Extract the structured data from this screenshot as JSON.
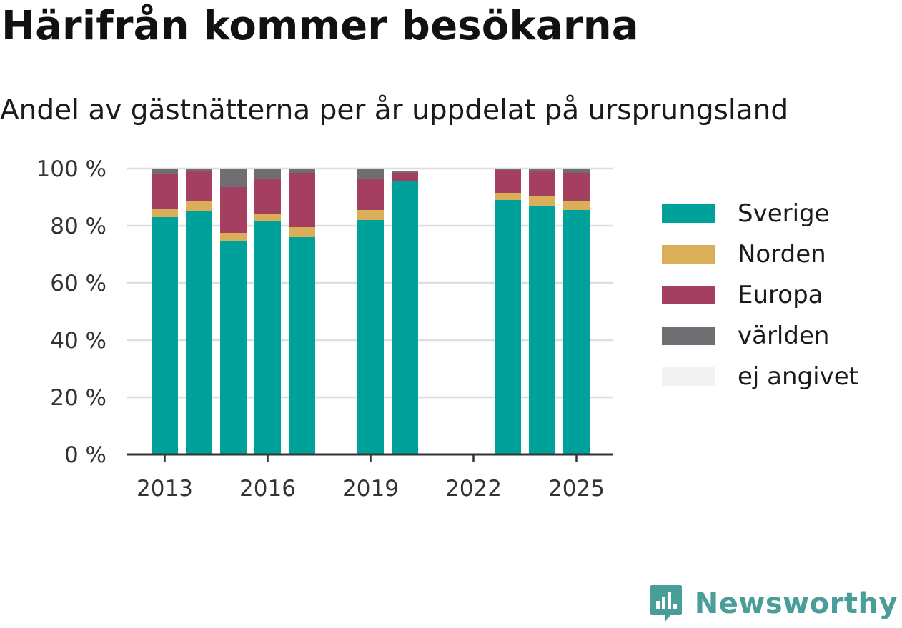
{
  "title": "Härifrån kommer besökarna",
  "subtitle": "Andel av gästnätterna per år uppdelat på ursprungsland",
  "brand": {
    "name": "Newsworthy",
    "color": "#4a9e99"
  },
  "chart_data": {
    "type": "bar",
    "stacked": true,
    "years": [
      2013,
      2014,
      2015,
      2016,
      2017,
      2018,
      2019,
      2020,
      2021,
      2022,
      2023,
      2024,
      2025
    ],
    "x_tick_labels": [
      "2013",
      "2016",
      "2019",
      "2022",
      "2025"
    ],
    "y_tick_labels": [
      "0 %",
      "20 %",
      "40 %",
      "60 %",
      "80 %",
      "100 %"
    ],
    "ylim": [
      0,
      100
    ],
    "grid": true,
    "legend_position": "right",
    "series": [
      {
        "name": "Sverige",
        "color": "#00a19a",
        "values": [
          83,
          85,
          74.5,
          81.5,
          76,
          null,
          82,
          95.5,
          null,
          null,
          89,
          87,
          85.5
        ]
      },
      {
        "name": "Norden",
        "color": "#dbaf5a",
        "values": [
          3,
          3.5,
          3,
          2.5,
          3.5,
          null,
          3.5,
          0,
          null,
          null,
          2.5,
          3.5,
          3
        ]
      },
      {
        "name": "Europa",
        "color": "#a53f62",
        "values": [
          12,
          10.5,
          16,
          12.5,
          19,
          null,
          11,
          3,
          null,
          null,
          8,
          8.5,
          10
        ]
      },
      {
        "name": "världen",
        "color": "#6e6e73",
        "values": [
          2,
          1,
          6.5,
          3.5,
          1.5,
          null,
          3.5,
          0.5,
          null,
          null,
          0.5,
          1,
          1.5
        ]
      },
      {
        "name": "ej angivet",
        "color": "#f2f2f2",
        "values": [
          0,
          0,
          0,
          0,
          0,
          null,
          0,
          0,
          null,
          null,
          0,
          0,
          0
        ]
      }
    ]
  }
}
